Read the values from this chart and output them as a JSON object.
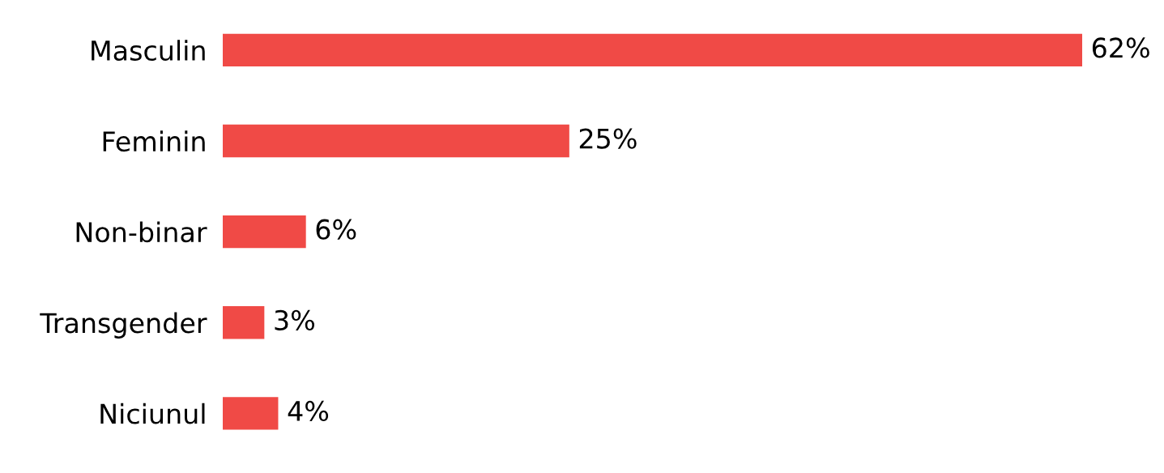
{
  "chart_data": {
    "type": "bar",
    "orientation": "horizontal",
    "categories": [
      "Masculin",
      "Feminin",
      "Non-binar",
      "Transgender",
      "Niciunul"
    ],
    "values": [
      62,
      25,
      6,
      3,
      4
    ],
    "value_labels": [
      "62%",
      "25%",
      "6%",
      "3%",
      "4%"
    ],
    "color": "#f04a46",
    "grid": false,
    "legend": false,
    "tick_labels": "y"
  }
}
